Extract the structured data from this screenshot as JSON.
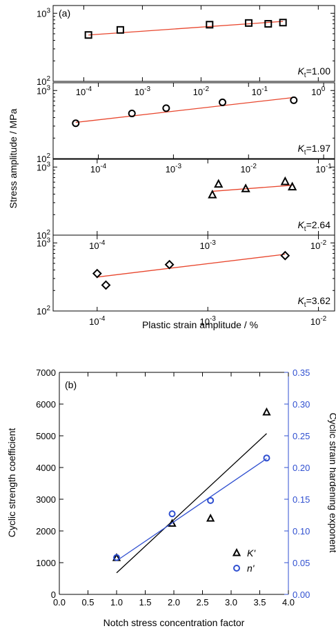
{
  "chart_data": [
    {
      "type": "scatter",
      "panel_label": "(a)",
      "ylabel": "Stress amplitude / MPa",
      "xlabel": "Plastic strain amplitude / %",
      "xscale": "log",
      "yscale": "log",
      "ylim": [
        100,
        1300
      ],
      "yticks": [
        "10^3",
        "10^2"
      ],
      "fit_color": "#e8452c",
      "subpanels": [
        {
          "kt_label": "=1.00",
          "marker": "square",
          "xlim": [
            3e-05,
            1.9
          ],
          "xticks": [
            {
              "v": 0.0001,
              "t": "10^-4"
            },
            {
              "v": 0.001,
              "t": "10^-3"
            },
            {
              "v": 0.01,
              "t": "10^-2"
            },
            {
              "v": 0.1,
              "t": "10^-1"
            },
            {
              "v": 1,
              "t": "10^0"
            }
          ],
          "x": [
            0.00012,
            0.00042,
            0.014,
            0.065,
            0.14,
            0.25
          ],
          "y": [
            480,
            570,
            680,
            720,
            700,
            730
          ],
          "fit": {
            "x": [
              0.00012,
              0.25
            ],
            "y": [
              480,
              760
            ]
          }
        },
        {
          "kt_label": "=1.97",
          "marker": "circle",
          "xlim": [
            2.5e-05,
            0.14
          ],
          "xticks": [
            {
              "v": 0.0001,
              "t": "10^-4"
            },
            {
              "v": 0.001,
              "t": "10^-3"
            },
            {
              "v": 0.01,
              "t": "10^-2"
            },
            {
              "v": 0.1,
              "t": "10^-1"
            }
          ],
          "x": [
            5e-05,
            0.00028,
            0.0008,
            0.0045,
            0.04
          ],
          "y": [
            330,
            460,
            550,
            670,
            720
          ],
          "fit": {
            "x": [
              5e-05,
              0.04
            ],
            "y": [
              340,
              790
            ]
          }
        },
        {
          "kt_label": "=2.64",
          "marker": "triangle",
          "xlim": [
            4e-05,
            0.014
          ],
          "xticks": [
            {
              "v": 0.0001,
              "t": "10^-4"
            },
            {
              "v": 0.001,
              "t": "10^-3"
            },
            {
              "v": 0.01,
              "t": "10^-2"
            }
          ],
          "x": [
            0.0011,
            0.00125,
            0.0022,
            0.005,
            0.0058
          ],
          "y": [
            390,
            560,
            480,
            610,
            510
          ],
          "fit": {
            "x": [
              0.0011,
              0.0058
            ],
            "y": [
              440,
              540
            ]
          }
        },
        {
          "kt_label": "=3.62",
          "marker": "diamond",
          "xlim": [
            4e-05,
            0.014
          ],
          "xticks": [
            {
              "v": 0.0001,
              "t": "10^-4"
            },
            {
              "v": 0.001,
              "t": "10^-3"
            },
            {
              "v": 0.01,
              "t": "10^-2"
            }
          ],
          "x": [
            0.0001,
            0.00012,
            0.00045,
            0.005
          ],
          "y": [
            355,
            240,
            480,
            650
          ],
          "fit": {
            "x": [
              0.0001,
              0.005
            ],
            "y": [
              315,
              680
            ]
          }
        }
      ]
    },
    {
      "type": "scatter",
      "panel_label": "(b)",
      "xlabel": "Notch stress concentration factor",
      "ylabel": "Cyclic strength coefficient",
      "y2label": "Cyclic strain hardening exponent",
      "xlim": [
        0.0,
        4.0
      ],
      "ylim": [
        0,
        7000
      ],
      "y2lim": [
        0.0,
        0.35
      ],
      "xticks": [
        "0.0",
        "0.5",
        "1.0",
        "1.5",
        "2.0",
        "2.5",
        "3.0",
        "3.5",
        "4.0"
      ],
      "yticks": [
        "0",
        "1000",
        "2000",
        "3000",
        "4000",
        "5000",
        "6000",
        "7000"
      ],
      "y2ticks": [
        "0.00",
        "0.05",
        "0.10",
        "0.15",
        "0.20",
        "0.25",
        "0.30",
        "0.35"
      ],
      "y2color": "#2f4fd0",
      "legend_position": "bottom-right",
      "series": [
        {
          "name": "K'",
          "marker": "triangle",
          "axis": "left",
          "color": "#000000",
          "x": [
            1.0,
            1.97,
            2.64,
            3.62
          ],
          "y": [
            1150,
            2230,
            2390,
            5740
          ],
          "fit": {
            "x": [
              1.0,
              3.62
            ],
            "y": [
              680,
              5070
            ]
          }
        },
        {
          "name": "n'",
          "marker": "circle",
          "axis": "right",
          "color": "#2f4fd0",
          "x": [
            1.0,
            1.97,
            2.64,
            3.62
          ],
          "y": [
            0.058,
            0.127,
            0.148,
            0.215
          ],
          "fit": {
            "x": [
              1.0,
              3.62
            ],
            "y": [
              0.053,
              0.214
            ]
          }
        }
      ]
    }
  ]
}
